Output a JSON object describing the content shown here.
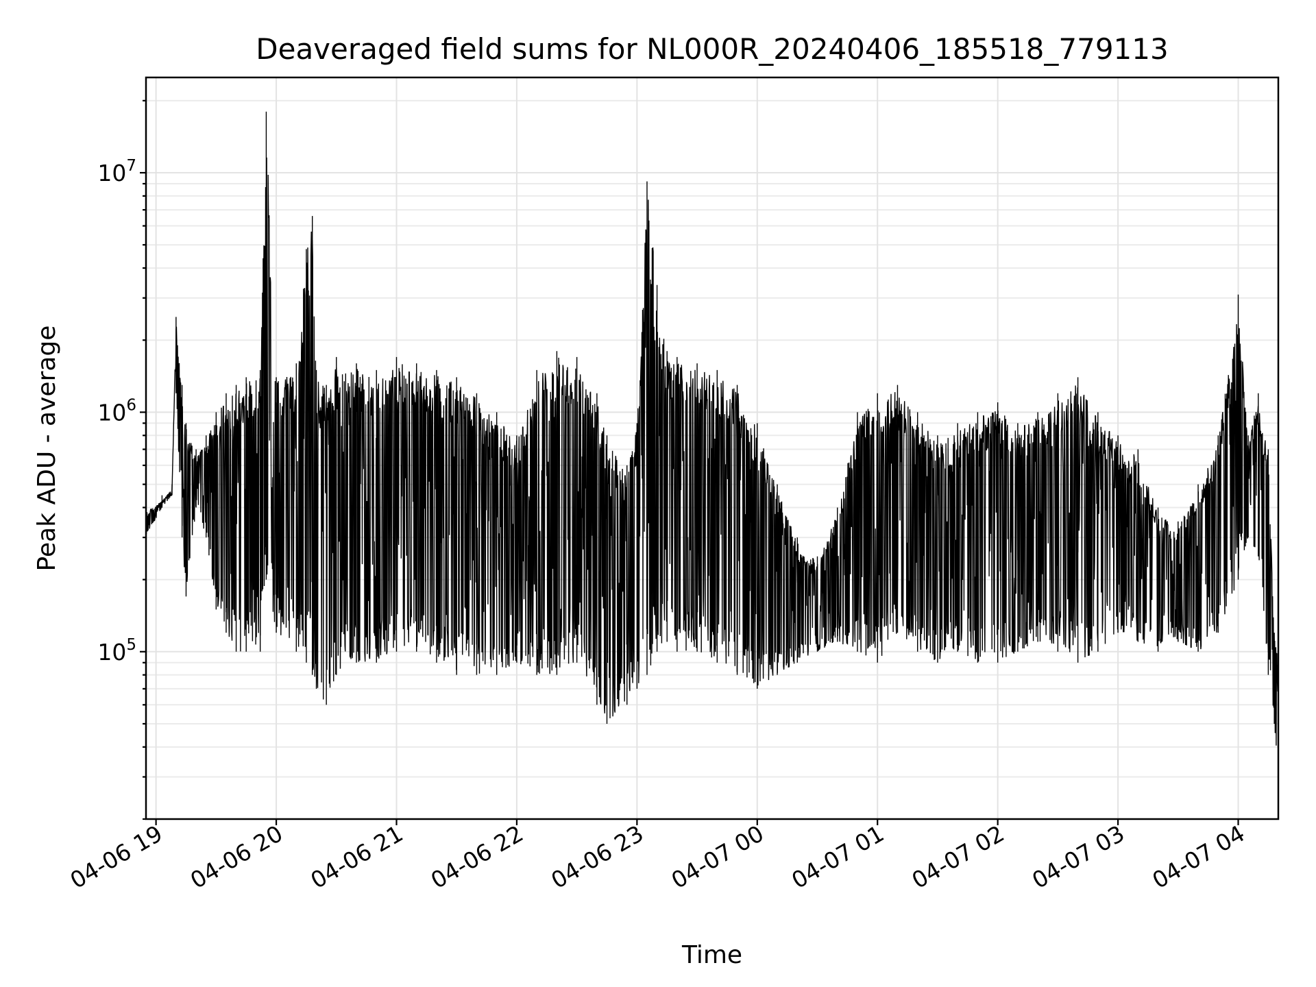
{
  "chart_data": {
    "type": "line",
    "title": "Deaveraged field sums for NL000R_20240406_185518_779113",
    "xlabel": "Time",
    "ylabel": "Peak ADU - average",
    "y_scale": "log",
    "grid": "on (major and minor)",
    "legend": "none",
    "xlim": [
      "2024-04-06 18:55",
      "2024-04-07 04:20"
    ],
    "ylim": [
      20000,
      25000000
    ],
    "x_ticks": [
      "04-06 19",
      "04-06 20",
      "04-06 21",
      "04-06 22",
      "04-06 23",
      "04-07 00",
      "04-07 01",
      "04-07 02",
      "04-07 03",
      "04-07 04"
    ],
    "x_tick_times": [
      "2024-04-06 19:00",
      "2024-04-06 20:00",
      "2024-04-06 21:00",
      "2024-04-06 22:00",
      "2024-04-06 23:00",
      "2024-04-07 00:00",
      "2024-04-07 01:00",
      "2024-04-07 02:00",
      "2024-04-07 03:00",
      "2024-04-07 04:00"
    ],
    "y_ticks": [
      {
        "value": 100000,
        "base": "10",
        "exp": "5"
      },
      {
        "value": 1000000,
        "base": "10",
        "exp": "6"
      },
      {
        "value": 10000000,
        "base": "10",
        "exp": "7"
      }
    ],
    "series_style": {
      "color": "#000000"
    },
    "series": [
      {
        "x": [
          "2024-04-06 18:55",
          "2024-04-06 19:03",
          "2024-04-06 19:08",
          "2024-04-06 19:10",
          "2024-04-06 19:13",
          "2024-04-06 19:15",
          "2024-04-06 19:20",
          "2024-04-06 19:25",
          "2024-04-06 19:30",
          "2024-04-06 19:35",
          "2024-04-06 19:40",
          "2024-04-06 19:45",
          "2024-04-06 19:52",
          "2024-04-06 19:55",
          "2024-04-06 20:00",
          "2024-04-06 20:10",
          "2024-04-06 20:15",
          "2024-04-06 20:18",
          "2024-04-06 20:20",
          "2024-04-06 20:25",
          "2024-04-06 20:30",
          "2024-04-06 20:40",
          "2024-04-06 20:50",
          "2024-04-06 21:00",
          "2024-04-06 21:10",
          "2024-04-06 21:20",
          "2024-04-06 21:30",
          "2024-04-06 21:40",
          "2024-04-06 21:50",
          "2024-04-06 22:00",
          "2024-04-06 22:10",
          "2024-04-06 22:20",
          "2024-04-06 22:30",
          "2024-04-06 22:40",
          "2024-04-06 22:45",
          "2024-04-06 22:55",
          "2024-04-06 23:00",
          "2024-04-06 23:05",
          "2024-04-06 23:10",
          "2024-04-06 23:15",
          "2024-04-06 23:20",
          "2024-04-06 23:30",
          "2024-04-06 23:40",
          "2024-04-06 23:50",
          "2024-04-07 00:00",
          "2024-04-07 00:10",
          "2024-04-07 00:20",
          "2024-04-07 00:30",
          "2024-04-07 00:40",
          "2024-04-07 00:50",
          "2024-04-07 01:00",
          "2024-04-07 01:10",
          "2024-04-07 01:20",
          "2024-04-07 01:30",
          "2024-04-07 01:40",
          "2024-04-07 01:50",
          "2024-04-07 02:00",
          "2024-04-07 02:10",
          "2024-04-07 02:20",
          "2024-04-07 02:30",
          "2024-04-07 02:40",
          "2024-04-07 02:50",
          "2024-04-07 03:00",
          "2024-04-07 03:10",
          "2024-04-07 03:20",
          "2024-04-07 03:30",
          "2024-04-07 03:40",
          "2024-04-07 03:50",
          "2024-04-07 04:00",
          "2024-04-07 04:05",
          "2024-04-07 04:10",
          "2024-04-07 04:15",
          "2024-04-07 04:18",
          "2024-04-07 04:20"
        ],
        "y": [
          400000,
          450000,
          500000,
          2500000,
          1300000,
          900000,
          700000,
          800000,
          1000000,
          1200000,
          1300000,
          1400000,
          1500000,
          18000000,
          1400000,
          1600000,
          4800000,
          6600000,
          1500000,
          1300000,
          1700000,
          1600000,
          1500000,
          1700000,
          1600000,
          1500000,
          1400000,
          1200000,
          1000000,
          800000,
          1500000,
          1800000,
          1700000,
          1200000,
          800000,
          600000,
          900000,
          9200000,
          3400000,
          1800000,
          1700000,
          1600000,
          1500000,
          1300000,
          900000,
          500000,
          300000,
          250000,
          400000,
          1000000,
          1200000,
          1300000,
          1000000,
          800000,
          900000,
          1000000,
          1100000,
          900000,
          1000000,
          1200000,
          1400000,
          1000000,
          800000,
          700000,
          400000,
          350000,
          500000,
          800000,
          3100000,
          800000,
          1200000,
          700000,
          120000,
          100000
        ],
        "y_low": [
          300000,
          400000,
          450000,
          1200000,
          300000,
          170000,
          400000,
          300000,
          150000,
          120000,
          100000,
          100000,
          100000,
          200000,
          120000,
          100000,
          90000,
          80000,
          70000,
          60000,
          80000,
          90000,
          90000,
          100000,
          100000,
          90000,
          80000,
          80000,
          80000,
          90000,
          80000,
          80000,
          90000,
          60000,
          50000,
          60000,
          70000,
          80000,
          100000,
          110000,
          100000,
          100000,
          90000,
          80000,
          70000,
          80000,
          90000,
          100000,
          110000,
          100000,
          90000,
          120000,
          100000,
          90000,
          100000,
          90000,
          90000,
          100000,
          110000,
          100000,
          90000,
          100000,
          120000,
          110000,
          100000,
          110000,
          100000,
          120000,
          200000,
          300000,
          250000,
          80000,
          50000,
          30000
        ]
      }
    ]
  }
}
